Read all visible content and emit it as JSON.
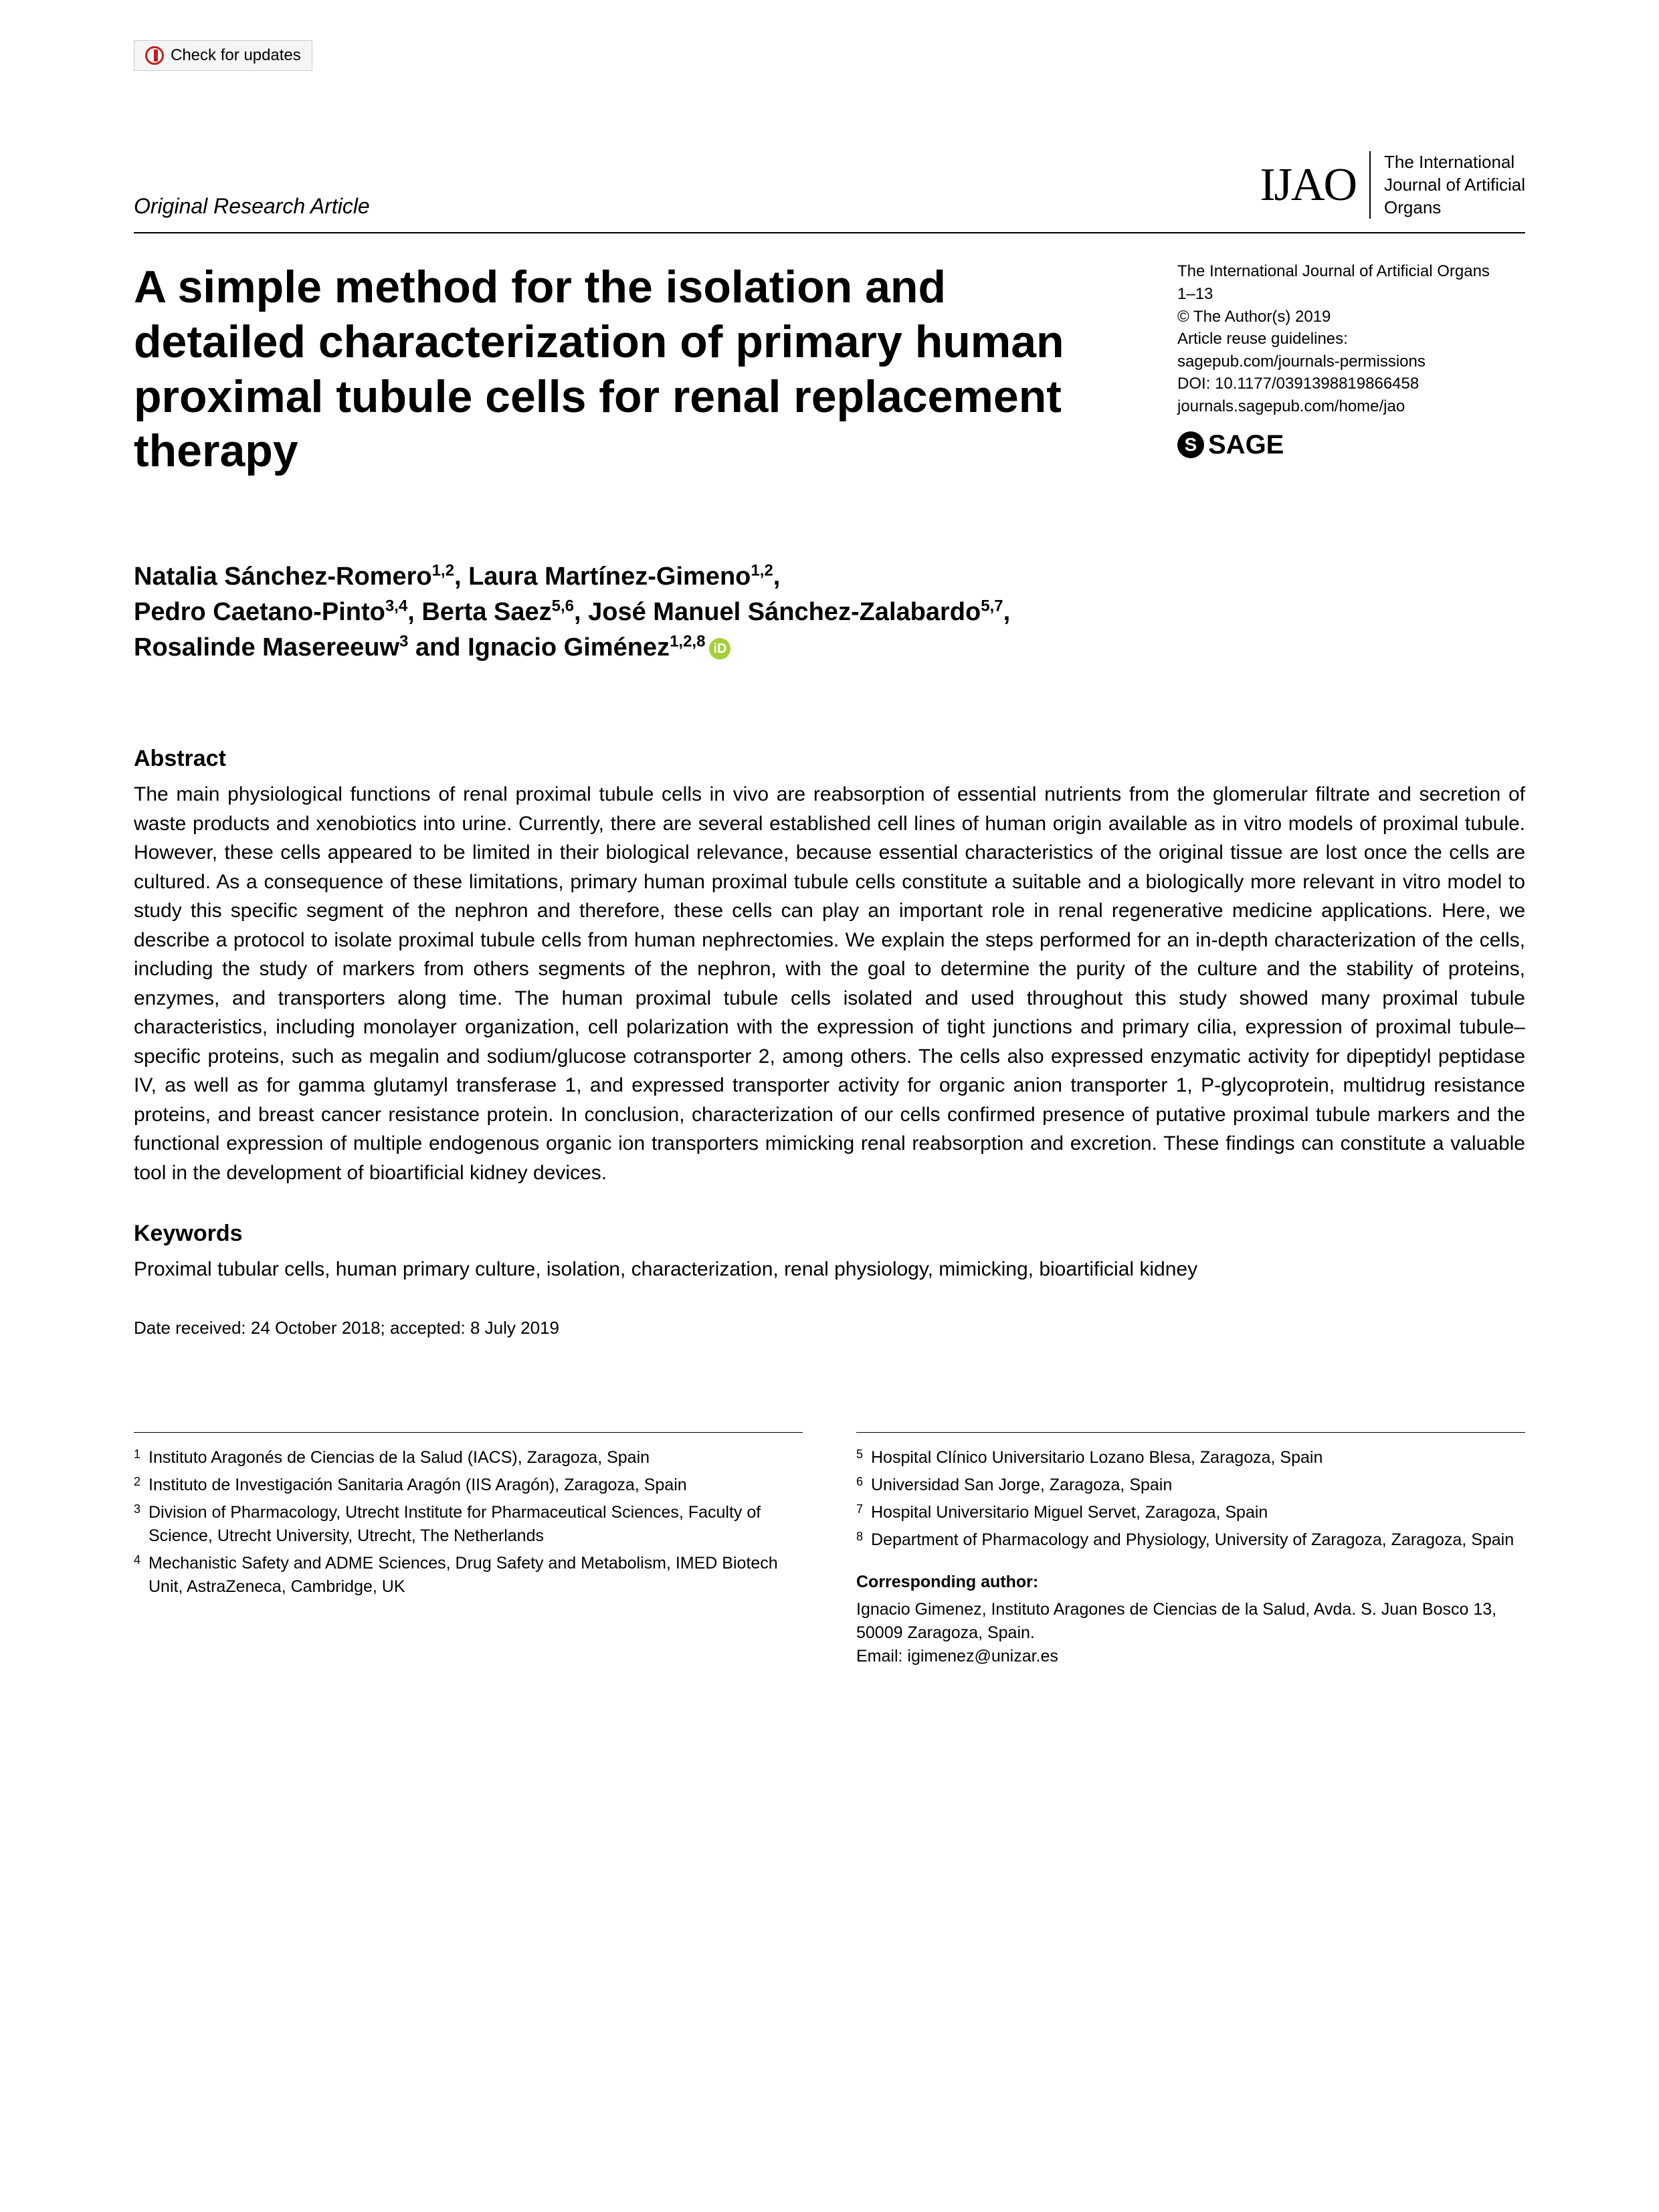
{
  "checkUpdates": "Check for updates",
  "articleType": "Original Research Article",
  "journalAbbrev": "IJAO",
  "journalFull1": "The International",
  "journalFull2": "Journal of Artificial",
  "journalFull3": "Organs",
  "meta": {
    "line1": "The International Journal of Artificial Organs",
    "line2": "1–13",
    "line3": "© The Author(s) 2019",
    "line4": "Article reuse guidelines:",
    "line5": "sagepub.com/journals-permissions",
    "line6": "DOI: 10.1177/0391398819866458",
    "line7": "journals.sagepub.com/home/jao"
  },
  "sageLabel": "SAGE",
  "title": "A simple method for the isolation and detailed characterization of primary human proximal tubule cells for renal replacement therapy",
  "authors": {
    "a1name": "Natalia Sánchez-Romero",
    "a1sup": "1,2",
    "a2name": "Laura Martínez-Gimeno",
    "a2sup": "1,2",
    "a3name": "Pedro Caetano-Pinto",
    "a3sup": "3,4",
    "a4name": "Berta Saez",
    "a4sup": "5,6",
    "a5name": "José Manuel Sánchez-Zalabardo",
    "a5sup": "5,7",
    "a6name": "Rosalinde Masereeuw",
    "a6sup": "3",
    "a7name": "Ignacio Giménez",
    "a7sup": "1,2,8"
  },
  "abstractHeading": "Abstract",
  "abstractText": "The main physiological functions of renal proximal tubule cells in vivo are reabsorption of essential nutrients from the glomerular filtrate and secretion of waste products and xenobiotics into urine. Currently, there are several established cell lines of human origin available as in vitro models of proximal tubule. However, these cells appeared to be limited in their biological relevance, because essential characteristics of the original tissue are lost once the cells are cultured. As a consequence of these limitations, primary human proximal tubule cells constitute a suitable and a biologically more relevant in vitro model to study this specific segment of the nephron and therefore, these cells can play an important role in renal regenerative medicine applications. Here, we describe a protocol to isolate proximal tubule cells from human nephrectomies. We explain the steps performed for an in-depth characterization of the cells, including the study of markers from others segments of the nephron, with the goal to determine the purity of the culture and the stability of proteins, enzymes, and transporters along time. The human proximal tubule cells isolated and used throughout this study showed many proximal tubule characteristics, including monolayer organization, cell polarization with the expression of tight junctions and primary cilia, expression of proximal tubule–specific proteins, such as megalin and sodium/glucose cotransporter 2, among others. The cells also expressed enzymatic activity for dipeptidyl peptidase IV, as well as for gamma glutamyl transferase 1, and expressed transporter activity for organic anion transporter 1, P-glycoprotein, multidrug resistance proteins, and breast cancer resistance protein. In conclusion, characterization of our cells confirmed presence of putative proximal tubule markers and the functional expression of multiple endogenous organic ion transporters mimicking renal reabsorption and excretion. These findings can constitute a valuable tool in the development of bioartificial kidney devices.",
  "keywordsHeading": "Keywords",
  "keywordsText": "Proximal tubular cells, human primary culture, isolation, characterization, renal physiology, mimicking, bioartificial kidney",
  "dateLine": "Date received: 24 October 2018; accepted: 8 July 2019",
  "affiliations": {
    "n1": "1",
    "t1": "Instituto Aragonés de Ciencias de la Salud (IACS), Zaragoza, Spain",
    "n2": "2",
    "t2": "Instituto de Investigación Sanitaria Aragón (IIS Aragón), Zaragoza, Spain",
    "n3": "3",
    "t3": "Division of Pharmacology, Utrecht Institute for Pharmaceutical Sciences, Faculty of Science, Utrecht University, Utrecht, The Netherlands",
    "n4": "4",
    "t4": "Mechanistic Safety and ADME Sciences, Drug Safety and Metabolism, IMED Biotech Unit, AstraZeneca, Cambridge, UK",
    "n5": "5",
    "t5": "Hospital Clínico Universitario Lozano Blesa, Zaragoza, Spain",
    "n6": "6",
    "t6": "Universidad San Jorge, Zaragoza, Spain",
    "n7": "7",
    "t7": "Hospital Universitario Miguel Servet, Zaragoza, Spain",
    "n8": "8",
    "t8": "Department of Pharmacology and Physiology, University of Zaragoza, Zaragoza, Spain"
  },
  "corr": {
    "heading": "Corresponding author:",
    "line1": "Ignacio Gimenez, Instituto Aragones de Ciencias de la Salud, Avda. S. Juan Bosco 13, 50009 Zaragoza, Spain.",
    "line2": "Email: igimenez@unizar.es"
  }
}
